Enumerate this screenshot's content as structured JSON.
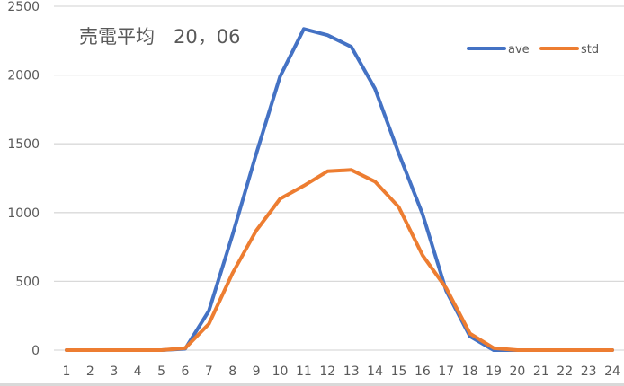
{
  "chart_data": {
    "type": "line",
    "title": "売電平均　20，06",
    "xlabel": "",
    "ylabel": "",
    "categories": [
      "1",
      "2",
      "3",
      "4",
      "5",
      "6",
      "7",
      "8",
      "9",
      "10",
      "11",
      "12",
      "13",
      "14",
      "15",
      "16",
      "17",
      "18",
      "19",
      "20",
      "21",
      "22",
      "23",
      "24"
    ],
    "series": [
      {
        "name": "ave",
        "color": "#4472C4",
        "values": [
          0,
          0,
          0,
          0,
          0,
          10,
          285,
          840,
          1430,
          1990,
          2335,
          2290,
          2205,
          1900,
          1430,
          990,
          430,
          100,
          0,
          0,
          0,
          0,
          0,
          0
        ]
      },
      {
        "name": "std",
        "color": "#ED7D31",
        "values": [
          0,
          0,
          0,
          0,
          0,
          15,
          190,
          560,
          870,
          1100,
          1195,
          1300,
          1310,
          1225,
          1040,
          690,
          450,
          120,
          15,
          0,
          0,
          0,
          0,
          0
        ]
      }
    ],
    "ylim": [
      0,
      2500
    ],
    "yticks": [
      0,
      500,
      1000,
      1500,
      2000,
      2500
    ],
    "grid": true,
    "legend_position": "top-right"
  }
}
